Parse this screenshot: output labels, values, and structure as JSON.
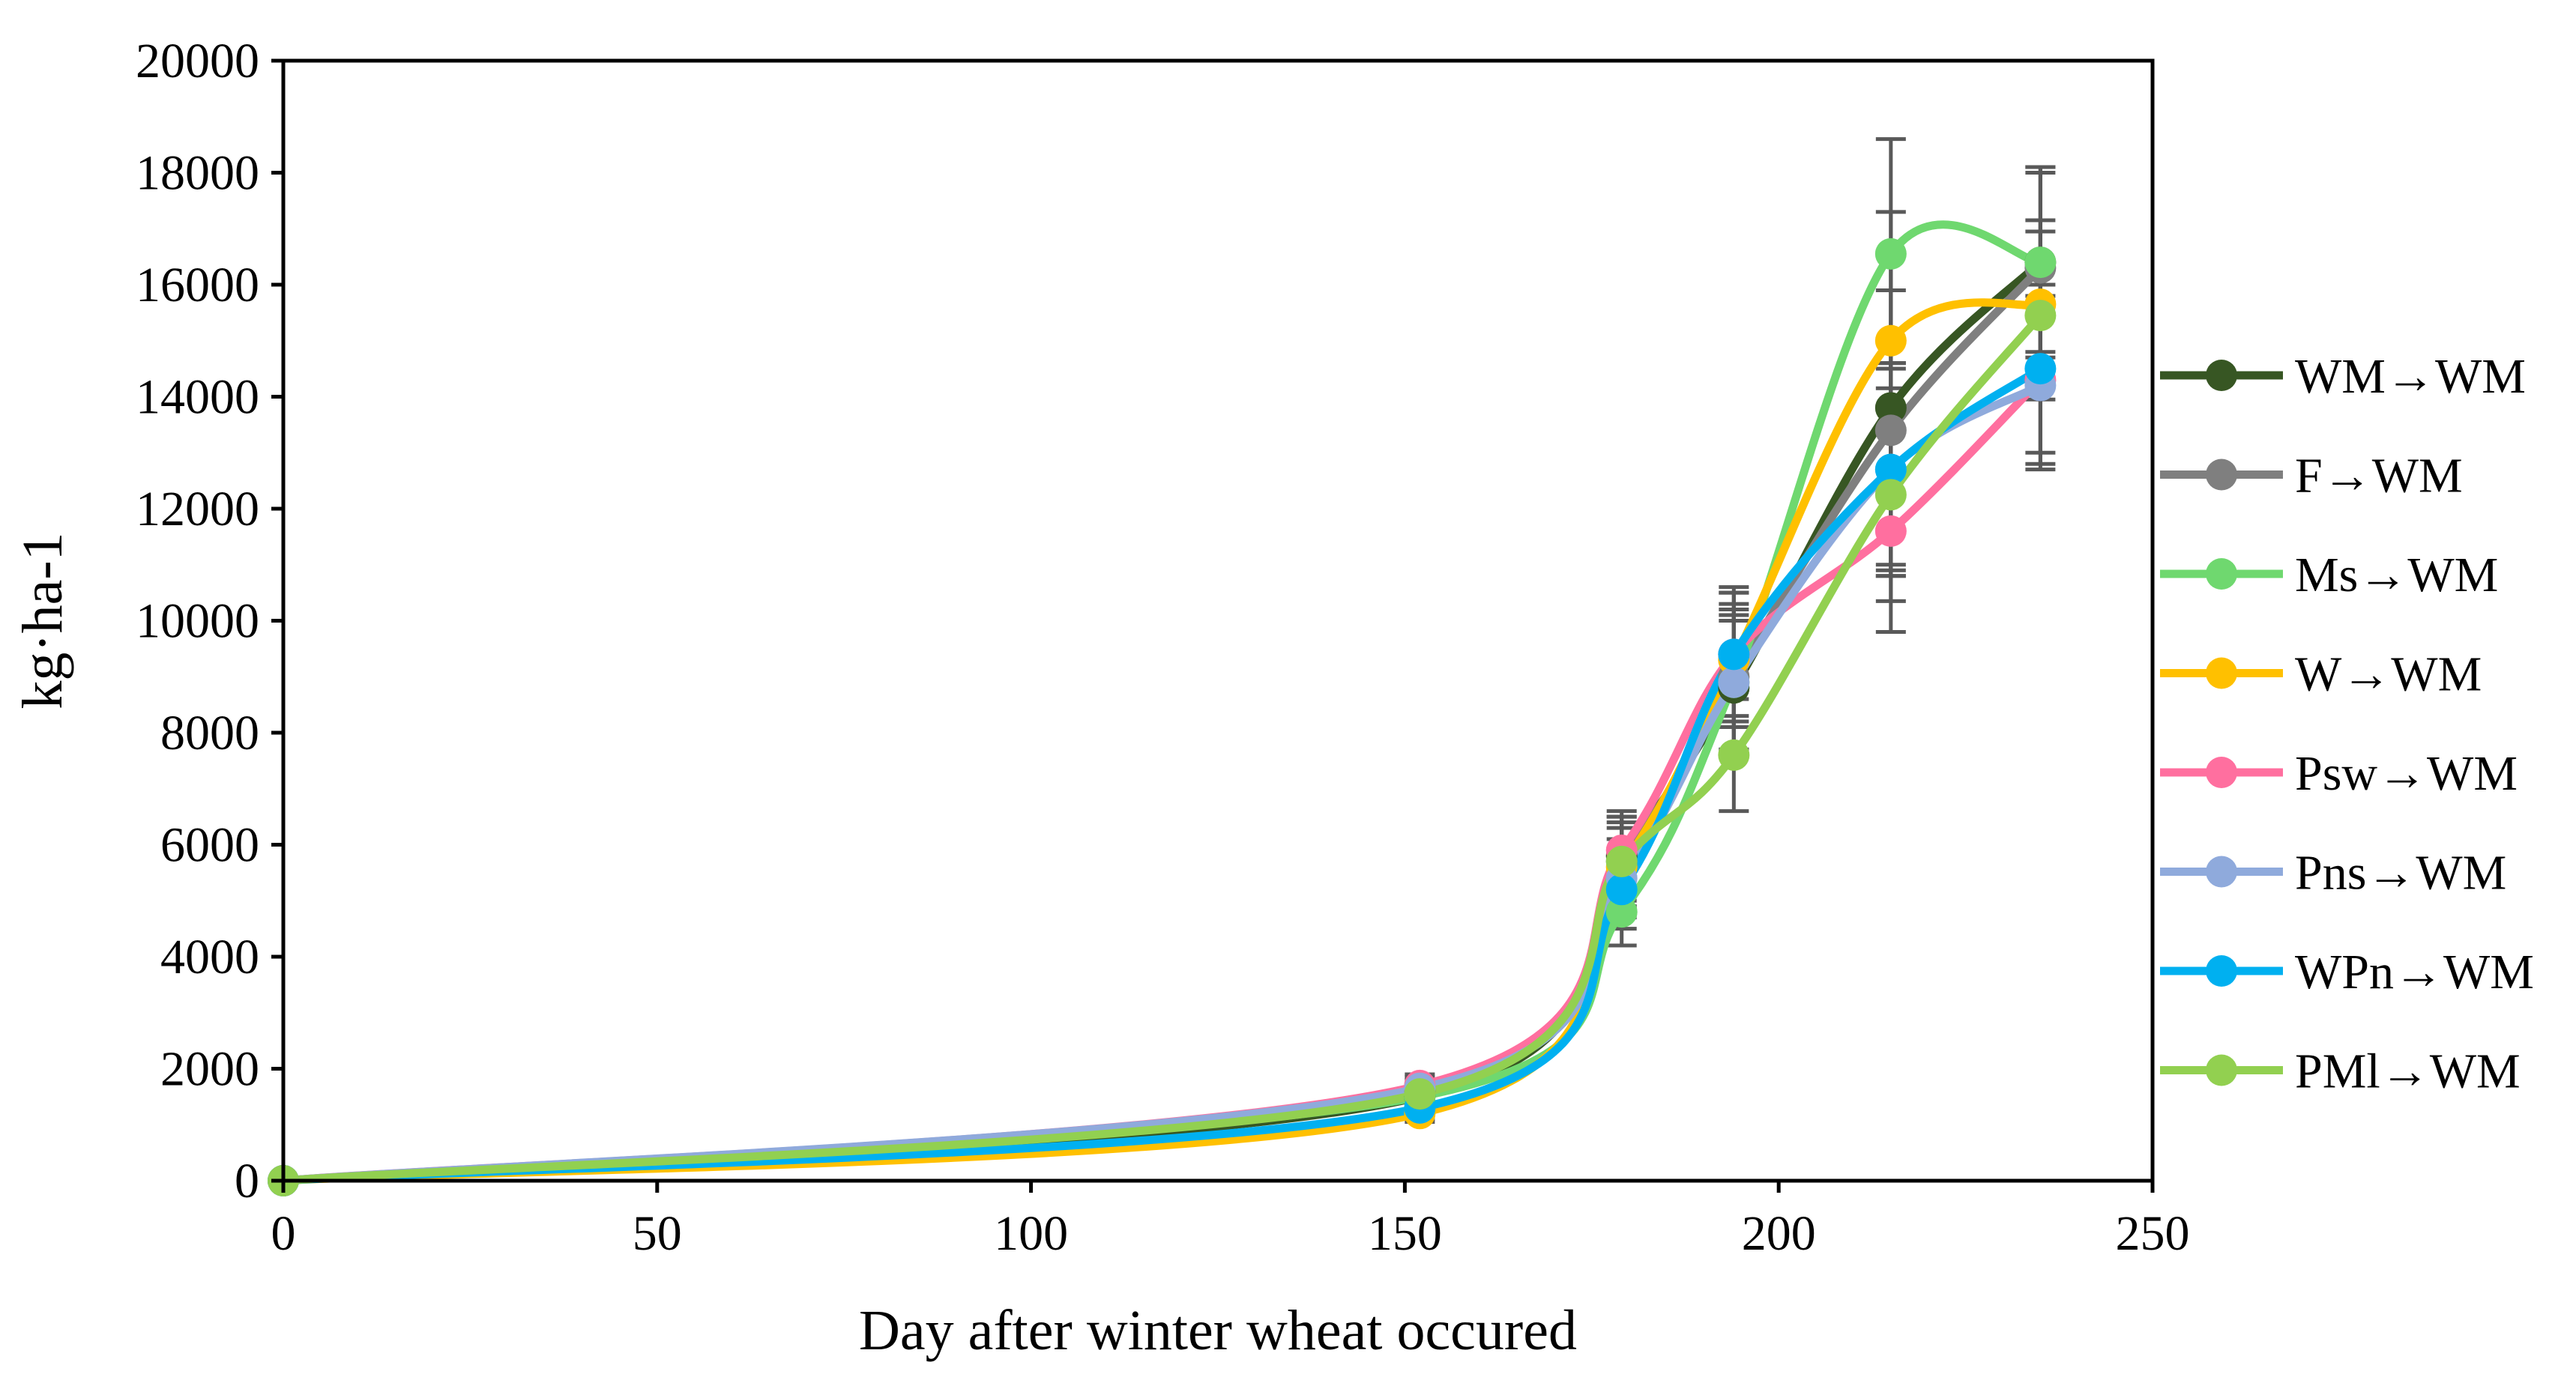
{
  "chart_data": {
    "type": "line",
    "title": "",
    "xlabel": "Day after winter wheat occured",
    "ylabel": "kg·ha-1",
    "xlim": [
      0,
      250
    ],
    "ylim": [
      0,
      20000
    ],
    "xticks": [
      0,
      50,
      100,
      150,
      200,
      250
    ],
    "yticks": [
      0,
      2000,
      4000,
      6000,
      8000,
      10000,
      12000,
      14000,
      16000,
      18000,
      20000
    ],
    "x": [
      0,
      152,
      179,
      194,
      215,
      235
    ],
    "legend_position": "right",
    "series": [
      {
        "name": "WM→WM",
        "color": "#375623",
        "values": [
          0,
          1500,
          5800,
          8800,
          13800,
          16400
        ],
        "errors": [
          0,
          200,
          700,
          1200,
          2800,
          1600
        ]
      },
      {
        "name": "F→WM",
        "color": "#7f7f7f",
        "values": [
          0,
          1600,
          5700,
          9000,
          13400,
          16300
        ],
        "errors": [
          0,
          200,
          800,
          1300,
          2500,
          1800
        ]
      },
      {
        "name": "Ms→WM",
        "color": "#6fd86f",
        "values": [
          0,
          1500,
          4800,
          8900,
          16550,
          16400
        ],
        "errors": [
          0,
          200,
          600,
          1300,
          2050,
          1700
        ]
      },
      {
        "name": "W→WM",
        "color": "#ffc000",
        "values": [
          0,
          1200,
          5600,
          9300,
          15000,
          15650
        ],
        "errors": [
          0,
          150,
          700,
          1200,
          2300,
          1500
        ]
      },
      {
        "name": "Psw→WM",
        "color": "#ff6f9f",
        "values": [
          0,
          1700,
          5900,
          9400,
          11600,
          14300
        ],
        "errors": [
          0,
          200,
          700,
          1100,
          1800,
          1500
        ]
      },
      {
        "name": "Pns→WM",
        "color": "#8faadc",
        "values": [
          0,
          1650,
          5400,
          8900,
          12700,
          14200
        ],
        "errors": [
          0,
          200,
          700,
          1200,
          1900,
          1500
        ]
      },
      {
        "name": "WPn→WM",
        "color": "#00b0f0",
        "values": [
          0,
          1300,
          5200,
          9400,
          12700,
          14500
        ],
        "errors": [
          0,
          200,
          700,
          1200,
          1900,
          1500
        ]
      },
      {
        "name": "PMl→WM",
        "color": "#92d050",
        "values": [
          0,
          1550,
          5700,
          7600,
          12250,
          15450
        ],
        "errors": [
          0,
          200,
          700,
          1000,
          1900,
          1500
        ]
      }
    ]
  }
}
